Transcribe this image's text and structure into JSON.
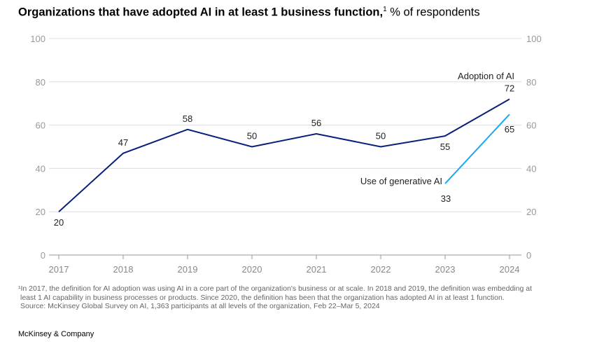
{
  "title": {
    "bold": "Organizations that have adopted AI in at least 1 business function,",
    "footnote_mark": "1",
    "unit": " % of respondents"
  },
  "chart_data": {
    "type": "line",
    "x": [
      "2017",
      "2018",
      "2019",
      "2020",
      "2021",
      "2022",
      "2023",
      "2024"
    ],
    "ylim": [
      0,
      100
    ],
    "yticks": [
      0,
      20,
      40,
      60,
      80,
      100
    ],
    "grid": true,
    "series": [
      {
        "name": "Adoption of AI",
        "x": [
          "2017",
          "2018",
          "2019",
          "2020",
          "2021",
          "2022",
          "2023",
          "2024"
        ],
        "values": [
          20,
          47,
          58,
          50,
          56,
          50,
          55,
          72
        ],
        "color": "#0a1f7a"
      },
      {
        "name": "Use of generative AI",
        "x": [
          "2023",
          "2024"
        ],
        "values": [
          33,
          65
        ],
        "color": "#1aa9ef"
      }
    ]
  },
  "footnotes": [
    "¹In 2017, the definition for AI adoption was using AI in a core part of the organization's business or at scale. In 2018 and 2019, the definition was embedding at",
    "least 1 AI capability in business processes or products. Since 2020, the definition has been that the organization has adopted AI in at least 1 function.",
    "Source: McKinsey Global Survey on AI, 1,363 participants at all levels of the organization, Feb 22–Mar 5, 2024"
  ],
  "brand": "McKinsey & Company"
}
